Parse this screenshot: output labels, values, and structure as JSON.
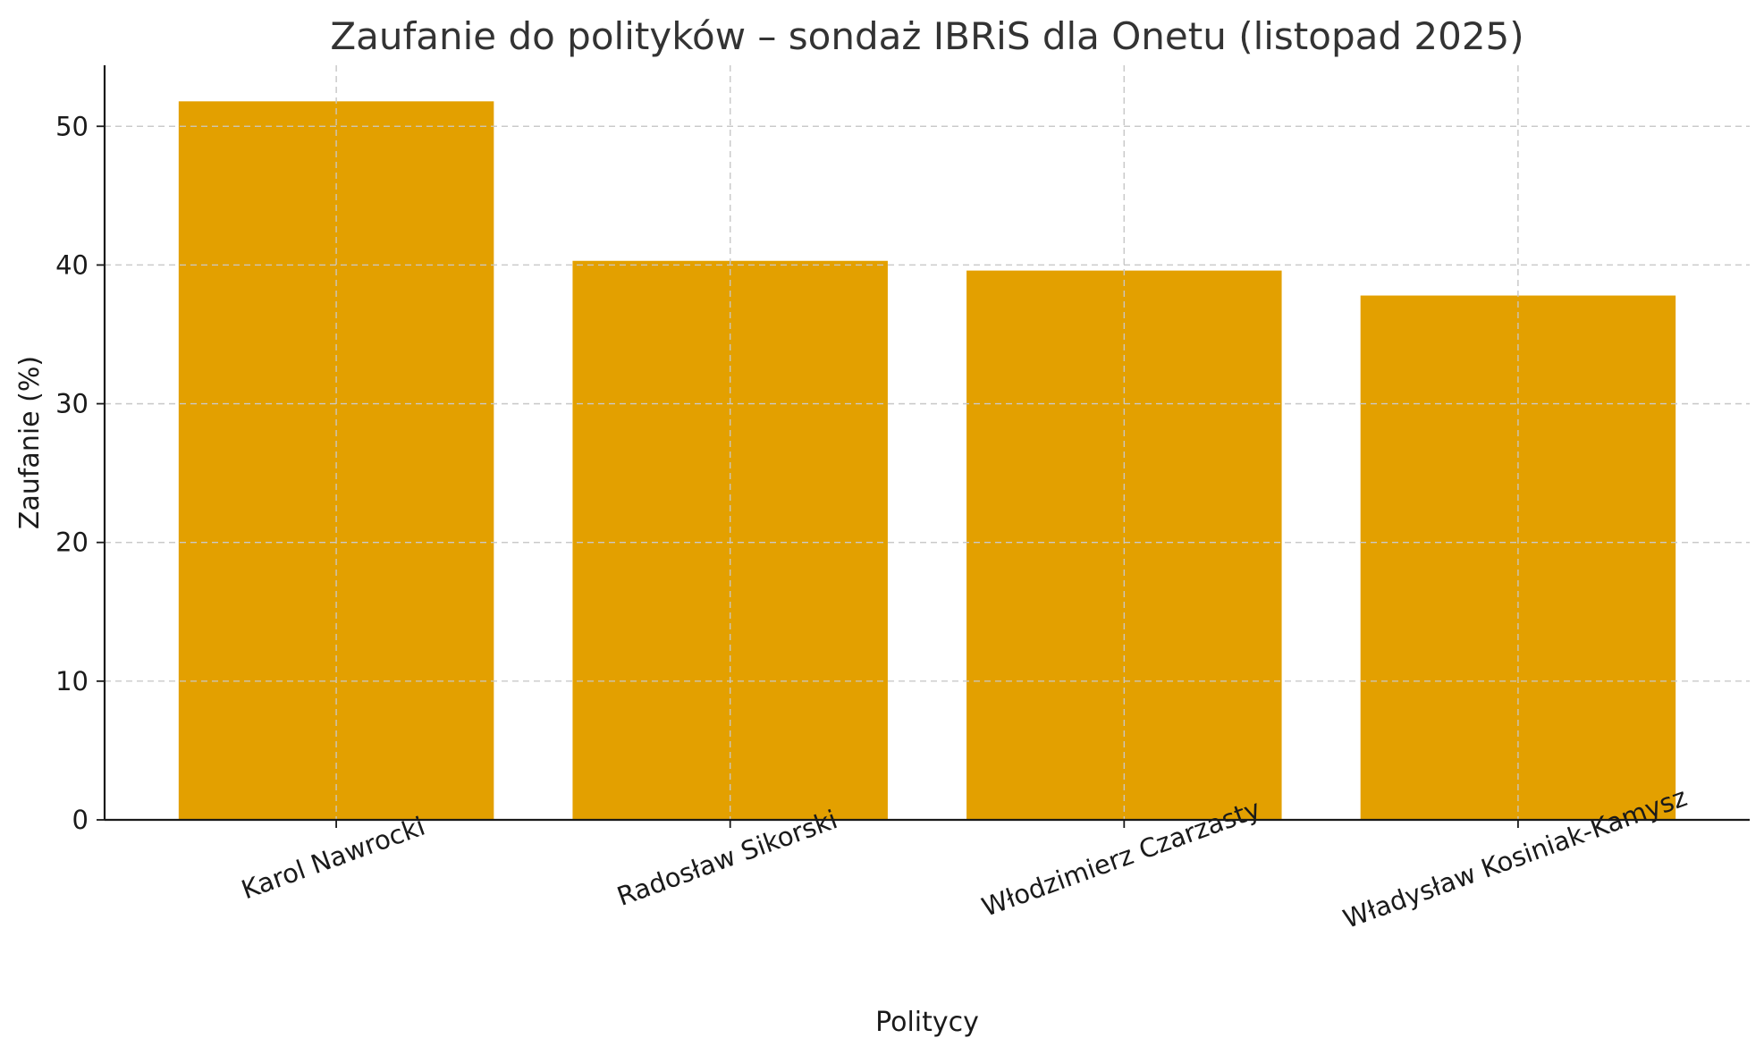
{
  "chart_data": {
    "type": "bar",
    "title": "Zaufanie do polityków – sondaż IBRiS dla Onetu (listopad 2025)",
    "xlabel": "Politycy",
    "ylabel": "Zaufanie (%)",
    "categories": [
      "Karol Nawrocki",
      "Radosław Sikorski",
      "Włodzimierz Czarzasty",
      "Władysław Kosiniak-Kamysz"
    ],
    "values": [
      51.8,
      40.3,
      39.6,
      37.8
    ],
    "ylim": [
      0,
      54.4
    ],
    "yticks": [
      0,
      10,
      20,
      30,
      40,
      50
    ],
    "grid": true,
    "bar_color": "#E3A000"
  }
}
